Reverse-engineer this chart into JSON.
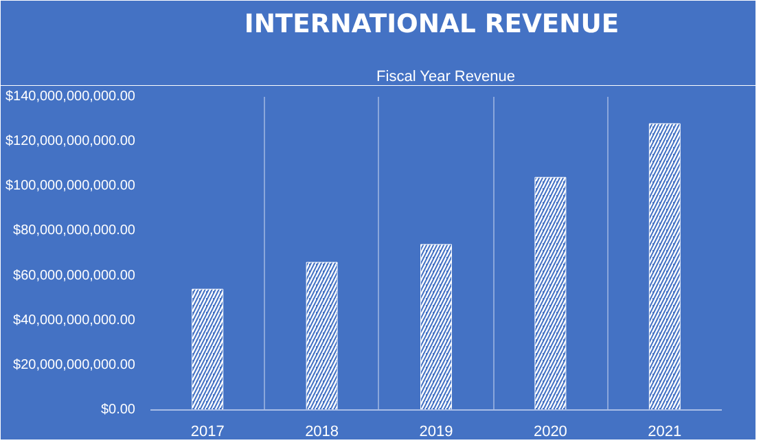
{
  "chart_data": {
    "type": "bar",
    "title": "INTERNATIONAL  REVENUE",
    "categories": [
      "2017",
      "2018",
      "2019",
      "2020",
      "2021"
    ],
    "series": [
      {
        "name": "Fiscal Year Revenue",
        "color": "#ffffff",
        "values": [
          54000000000,
          66000000000,
          74000000000,
          104000000000,
          128000000000
        ]
      }
    ],
    "ylim": [
      0,
      140000000000
    ],
    "yticks": [
      {
        "value": 0,
        "label": "$0.00"
      },
      {
        "value": 20000000000,
        "label": "$20,000,000,000.00"
      },
      {
        "value": 40000000000,
        "label": "$40,000,000,000.00"
      },
      {
        "value": 60000000000,
        "label": "$60,000,000,000.00"
      },
      {
        "value": 80000000000,
        "label": "$80,000,000,000.00"
      },
      {
        "value": 100000000000,
        "label": "$100,000,000,000.00"
      },
      {
        "value": 120000000000,
        "label": "$120,000,000,000.00"
      },
      {
        "value": 140000000000,
        "label": "$140,000,000,000.00"
      }
    ],
    "grid": "x",
    "legend": "top"
  }
}
